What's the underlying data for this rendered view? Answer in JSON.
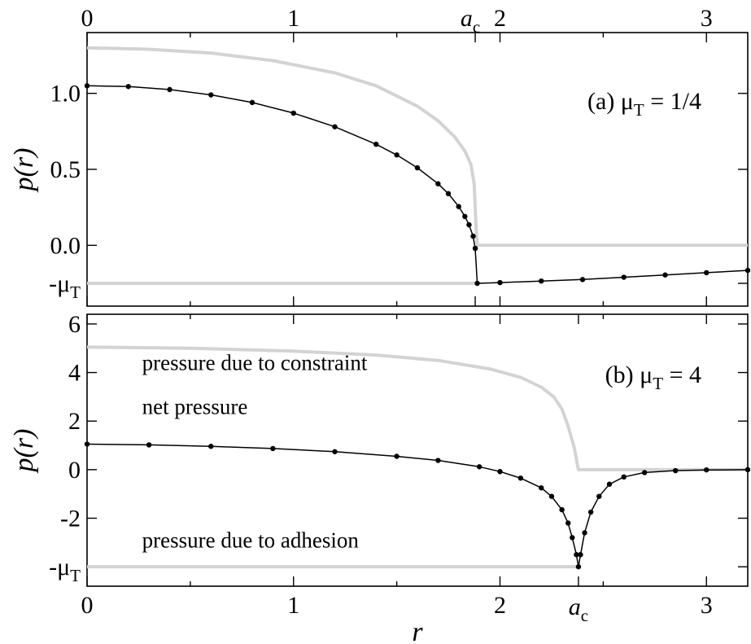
{
  "chart_data": [
    {
      "type": "line",
      "panel_label": "(a) μ",
      "panel_label_sub": "T",
      "panel_label_value": " = 1/4",
      "xlim": [
        0,
        3.2
      ],
      "ylim": [
        -0.4,
        1.4
      ],
      "xticks": [
        0,
        1,
        2,
        3
      ],
      "xtick_labels_top": [
        "0",
        "1",
        "2",
        "3"
      ],
      "ytick_labels": [
        {
          "value": 1.0,
          "label": "1.0"
        },
        {
          "value": 0.5,
          "label": "0.5"
        },
        {
          "value": 0.0,
          "label": "0.0"
        },
        {
          "value": -0.25,
          "label": "-μ",
          "sub": "T"
        }
      ],
      "ylabel": "p(r)",
      "a_c": 1.88,
      "a_c_label": "a",
      "a_c_sub": "c",
      "grid": false,
      "series": [
        {
          "role": "constraint",
          "color": "#d3d3d3",
          "points": [
            [
              0,
              1.3
            ],
            [
              0.3,
              1.29
            ],
            [
              0.6,
              1.265
            ],
            [
              0.9,
              1.215
            ],
            [
              1.2,
              1.135
            ],
            [
              1.4,
              1.05
            ],
            [
              1.6,
              0.915
            ],
            [
              1.7,
              0.82
            ],
            [
              1.78,
              0.715
            ],
            [
              1.83,
              0.62
            ],
            [
              1.86,
              0.53
            ],
            [
              1.875,
              0.4
            ],
            [
              1.88,
              0.25
            ],
            [
              1.885,
              0.1
            ],
            [
              1.89,
              0.0
            ],
            [
              3.2,
              0.0
            ]
          ]
        },
        {
          "role": "adhesion",
          "color": "#d3d3d3",
          "points": [
            [
              0,
              -0.25
            ],
            [
              1.88,
              -0.25
            ]
          ]
        },
        {
          "role": "net",
          "color": "#000000",
          "markers": true,
          "points": [
            [
              0,
              1.05
            ],
            [
              0.2,
              1.045
            ],
            [
              0.4,
              1.025
            ],
            [
              0.6,
              0.99
            ],
            [
              0.8,
              0.94
            ],
            [
              1.0,
              0.87
            ],
            [
              1.2,
              0.78
            ],
            [
              1.4,
              0.665
            ],
            [
              1.5,
              0.595
            ],
            [
              1.6,
              0.51
            ],
            [
              1.7,
              0.405
            ],
            [
              1.75,
              0.34
            ],
            [
              1.8,
              0.255
            ],
            [
              1.83,
              0.19
            ],
            [
              1.85,
              0.135
            ],
            [
              1.87,
              0.06
            ],
            [
              1.88,
              -0.02
            ],
            [
              1.89,
              -0.25
            ],
            [
              2.0,
              -0.245
            ],
            [
              2.2,
              -0.235
            ],
            [
              2.4,
              -0.225
            ],
            [
              2.6,
              -0.21
            ],
            [
              2.8,
              -0.195
            ],
            [
              3.0,
              -0.18
            ],
            [
              3.2,
              -0.165
            ]
          ]
        }
      ]
    },
    {
      "type": "line",
      "panel_label": "(b) μ",
      "panel_label_sub": "T",
      "panel_label_value": " = 4",
      "xlim": [
        0,
        3.2
      ],
      "ylim": [
        -4.8,
        6.4
      ],
      "xticks": [
        0,
        1,
        2,
        3
      ],
      "xtick_labels_bottom": [
        "0",
        "1",
        "2",
        "3"
      ],
      "ytick_labels": [
        {
          "value": 6,
          "label": "6"
        },
        {
          "value": 4,
          "label": "4"
        },
        {
          "value": 2,
          "label": "2"
        },
        {
          "value": 0,
          "label": "0"
        },
        {
          "value": -2,
          "label": "-2"
        },
        {
          "value": -4,
          "label": "-μ",
          "sub": "T"
        }
      ],
      "ylabel": "p(r)",
      "xlabel": "r",
      "a_c": 2.38,
      "a_c_label": "a",
      "a_c_sub": "c",
      "grid": false,
      "annotations": [
        {
          "text": "pressure due to constraint",
          "x": 0.18,
          "y": 4.1
        },
        {
          "text": "net pressure",
          "x": 0.18,
          "y": 2.3
        },
        {
          "text": "pressure due to adhesion",
          "x": 0.18,
          "y": -3.2
        }
      ],
      "series": [
        {
          "role": "constraint",
          "color": "#d3d3d3",
          "points": [
            [
              0,
              5.05
            ],
            [
              0.5,
              5.0
            ],
            [
              1.0,
              4.88
            ],
            [
              1.4,
              4.72
            ],
            [
              1.7,
              4.5
            ],
            [
              1.95,
              4.15
            ],
            [
              2.1,
              3.8
            ],
            [
              2.2,
              3.4
            ],
            [
              2.26,
              3.0
            ],
            [
              2.3,
              2.5
            ],
            [
              2.33,
              1.8
            ],
            [
              2.36,
              0.9
            ],
            [
              2.38,
              0.0
            ],
            [
              3.2,
              0.0
            ]
          ]
        },
        {
          "role": "adhesion",
          "color": "#d3d3d3",
          "points": [
            [
              0,
              -4
            ],
            [
              2.38,
              -4
            ]
          ]
        },
        {
          "role": "net",
          "color": "#000000",
          "markers": true,
          "points": [
            [
              0,
              1.05
            ],
            [
              0.3,
              1.02
            ],
            [
              0.6,
              0.96
            ],
            [
              0.9,
              0.87
            ],
            [
              1.2,
              0.74
            ],
            [
              1.5,
              0.55
            ],
            [
              1.7,
              0.38
            ],
            [
              1.9,
              0.12
            ],
            [
              2.0,
              -0.08
            ],
            [
              2.1,
              -0.35
            ],
            [
              2.2,
              -0.75
            ],
            [
              2.25,
              -1.1
            ],
            [
              2.3,
              -1.65
            ],
            [
              2.33,
              -2.2
            ],
            [
              2.35,
              -2.8
            ],
            [
              2.37,
              -3.5
            ],
            [
              2.38,
              -4.0
            ],
            [
              2.39,
              -3.5
            ],
            [
              2.41,
              -2.6
            ],
            [
              2.44,
              -1.75
            ],
            [
              2.48,
              -1.1
            ],
            [
              2.53,
              -0.6
            ],
            [
              2.6,
              -0.3
            ],
            [
              2.7,
              -0.12
            ],
            [
              2.85,
              -0.04
            ],
            [
              3.0,
              -0.01
            ],
            [
              3.2,
              0.0
            ]
          ]
        }
      ]
    }
  ]
}
